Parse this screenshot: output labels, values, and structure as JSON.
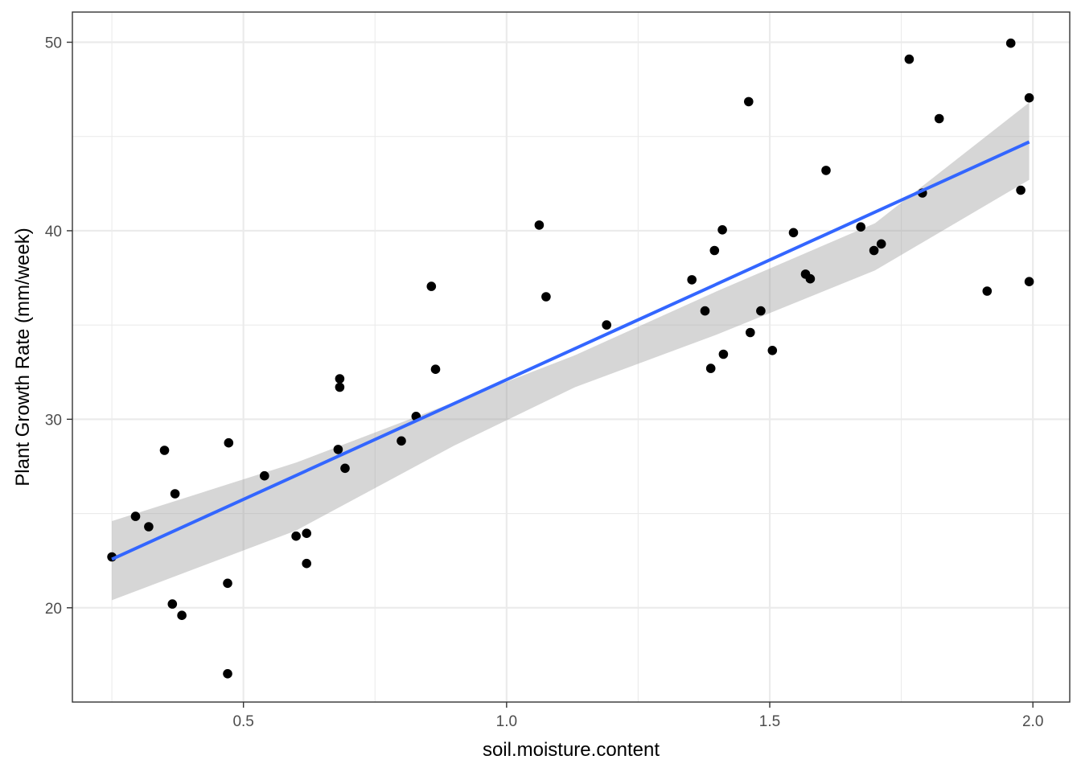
{
  "chart_data": {
    "type": "scatter",
    "title": "",
    "xlabel": "soil.moisture.content",
    "ylabel": "Plant Growth Rate (mm/week)",
    "xlim": [
      0.175,
      2.07
    ],
    "ylim": [
      15.0,
      51.6
    ],
    "x_ticks": [
      0.5,
      1.0,
      1.5,
      2.0
    ],
    "x_tick_labels": [
      "0.5",
      "1.0",
      "1.5",
      "2.0"
    ],
    "y_ticks": [
      20,
      30,
      40,
      50
    ],
    "y_tick_labels": [
      "20",
      "30",
      "40",
      "50"
    ],
    "grid": true,
    "legend": "none",
    "colors": {
      "points": "#000000",
      "fit_line": "#3366FF",
      "ribbon": "#999999",
      "grid": "#EBEBEB",
      "panel_border": "#333333"
    },
    "points": [
      {
        "x": 0.25,
        "y": 22.7
      },
      {
        "x": 0.295,
        "y": 24.85
      },
      {
        "x": 0.32,
        "y": 24.3
      },
      {
        "x": 0.35,
        "y": 28.35
      },
      {
        "x": 0.365,
        "y": 20.2
      },
      {
        "x": 0.37,
        "y": 26.05
      },
      {
        "x": 0.383,
        "y": 19.6
      },
      {
        "x": 0.47,
        "y": 21.3
      },
      {
        "x": 0.47,
        "y": 16.5
      },
      {
        "x": 0.472,
        "y": 28.75
      },
      {
        "x": 0.54,
        "y": 27.0
      },
      {
        "x": 0.6,
        "y": 23.8
      },
      {
        "x": 0.62,
        "y": 23.95
      },
      {
        "x": 0.62,
        "y": 22.35
      },
      {
        "x": 0.68,
        "y": 28.4
      },
      {
        "x": 0.683,
        "y": 32.15
      },
      {
        "x": 0.683,
        "y": 31.7
      },
      {
        "x": 0.693,
        "y": 27.4
      },
      {
        "x": 0.8,
        "y": 28.85
      },
      {
        "x": 0.828,
        "y": 30.15
      },
      {
        "x": 0.857,
        "y": 37.05
      },
      {
        "x": 0.865,
        "y": 32.65
      },
      {
        "x": 1.062,
        "y": 40.3
      },
      {
        "x": 1.075,
        "y": 36.5
      },
      {
        "x": 1.19,
        "y": 35.0
      },
      {
        "x": 1.352,
        "y": 37.4
      },
      {
        "x": 1.377,
        "y": 35.75
      },
      {
        "x": 1.388,
        "y": 32.7
      },
      {
        "x": 1.395,
        "y": 38.95
      },
      {
        "x": 1.41,
        "y": 40.05
      },
      {
        "x": 1.412,
        "y": 33.45
      },
      {
        "x": 1.46,
        "y": 46.85
      },
      {
        "x": 1.463,
        "y": 34.6
      },
      {
        "x": 1.483,
        "y": 35.75
      },
      {
        "x": 1.505,
        "y": 33.65
      },
      {
        "x": 1.545,
        "y": 39.9
      },
      {
        "x": 1.568,
        "y": 37.7
      },
      {
        "x": 1.577,
        "y": 37.45
      },
      {
        "x": 1.607,
        "y": 43.2
      },
      {
        "x": 1.673,
        "y": 40.2
      },
      {
        "x": 1.698,
        "y": 38.95
      },
      {
        "x": 1.712,
        "y": 39.3
      },
      {
        "x": 1.765,
        "y": 49.1
      },
      {
        "x": 1.79,
        "y": 42.0
      },
      {
        "x": 1.822,
        "y": 45.95
      },
      {
        "x": 1.913,
        "y": 36.8
      },
      {
        "x": 1.958,
        "y": 49.95
      },
      {
        "x": 1.977,
        "y": 42.15
      },
      {
        "x": 1.993,
        "y": 47.05
      },
      {
        "x": 1.993,
        "y": 37.3
      }
    ],
    "fit": {
      "method": "lm",
      "x_range": [
        0.25,
        1.993
      ],
      "intercept": 19.4,
      "slope": 12.7,
      "ribbon": {
        "x": [
          0.25,
          0.6,
          0.9,
          1.13,
          1.4,
          1.7,
          1.993
        ],
        "lower": [
          20.4,
          24.1,
          28.6,
          31.7,
          34.5,
          37.9,
          42.7
        ],
        "upper": [
          24.6,
          27.7,
          30.9,
          33.4,
          36.8,
          40.4,
          46.8
        ]
      }
    }
  }
}
